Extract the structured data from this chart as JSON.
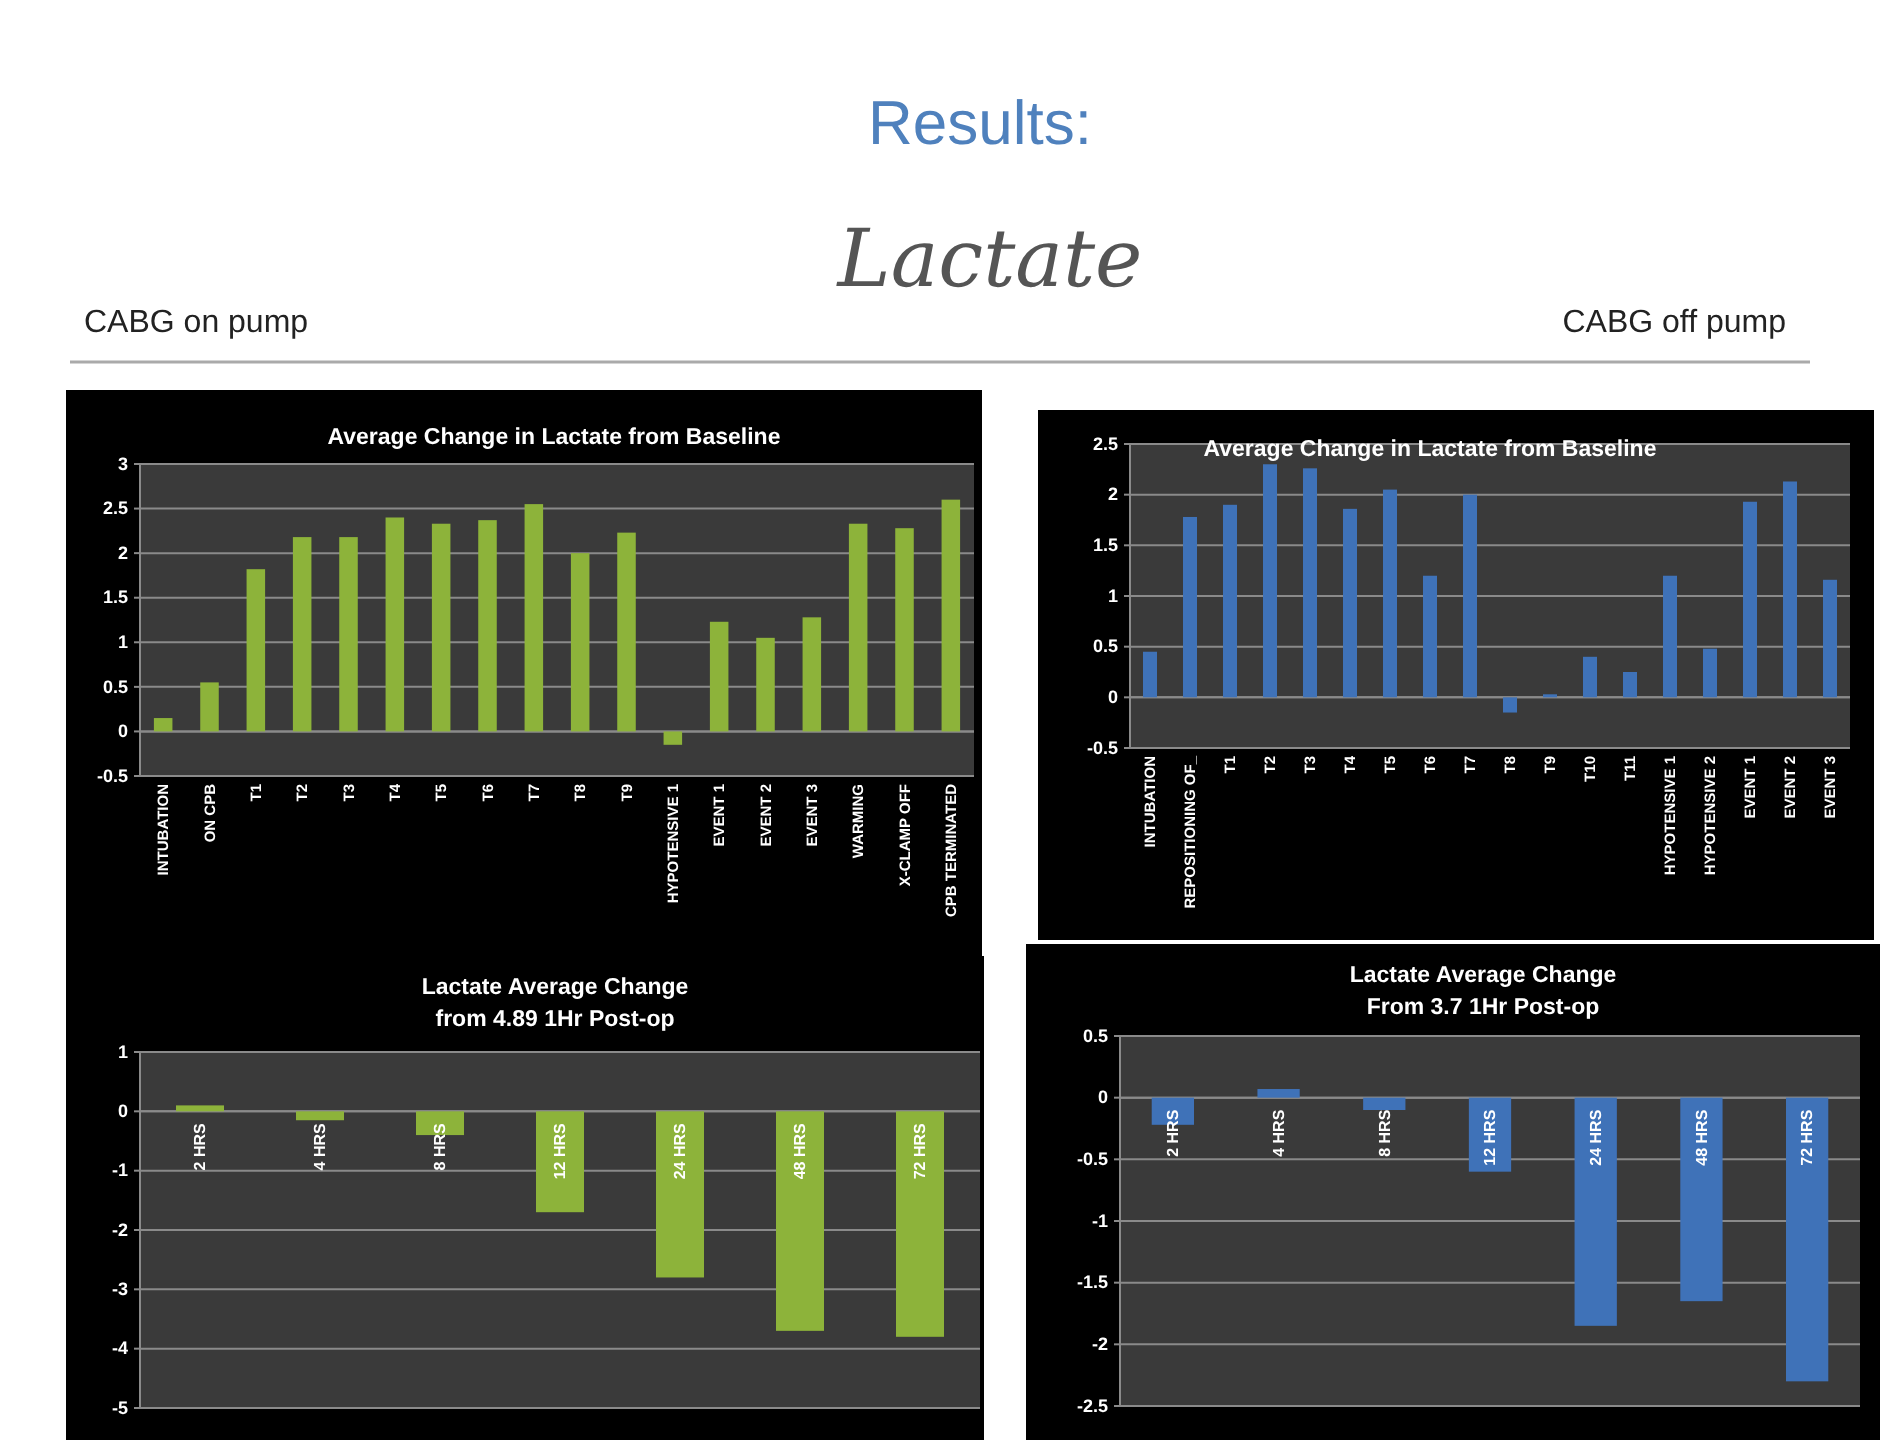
{
  "chart_data": [
    {
      "type": "other",
      "title": "Results:",
      "subtitle": "Lactate",
      "annotations": [
        "CABG on pump",
        "CABG off pump"
      ]
    },
    {
      "type": "bar",
      "title": "Average Change in Lactate from Baseline",
      "categories": [
        "INTUBATION",
        "ON CPB",
        "T1",
        "T2",
        "T3",
        "T4",
        "T5",
        "T6",
        "T7",
        "T8",
        "T9",
        "HYPOTENSIVE 1",
        "EVENT 1",
        "EVENT 2",
        "EVENT 3",
        "WARMING",
        "X-CLAMP OFF",
        "CPB TERMINATED"
      ],
      "values": [
        0.15,
        0.55,
        1.82,
        2.18,
        2.18,
        2.4,
        2.33,
        2.37,
        2.55,
        2.0,
        2.23,
        -0.15,
        1.23,
        1.05,
        1.28,
        2.33,
        2.28,
        2.6
      ],
      "color": "#8db33a",
      "ylim": [
        -0.5,
        3
      ],
      "yticks": [
        -0.5,
        0,
        0.5,
        1,
        1.5,
        2,
        2.5,
        3
      ],
      "grid": "y"
    },
    {
      "type": "bar",
      "title": "Average Change in Lactate from Baseline",
      "categories": [
        "INTUBATION",
        "REPOSITIONING OF_",
        "T1",
        "T2",
        "T3",
        "T4",
        "T5",
        "T6",
        "T7",
        "T8",
        "T9",
        "T10",
        "T11",
        "HYPOTENSIVE 1",
        "HYPOTENSIVE 2",
        "EVENT 1",
        "EVENT 2",
        "EVENT 3"
      ],
      "values": [
        0.45,
        1.78,
        1.9,
        2.3,
        2.26,
        1.86,
        2.05,
        1.2,
        2.0,
        -0.15,
        0.03,
        0.4,
        0.25,
        1.2,
        0.48,
        1.93,
        2.13,
        1.16
      ],
      "color": "#3f72b8",
      "ylim": [
        -0.5,
        2.5
      ],
      "yticks": [
        -0.5,
        0,
        0.5,
        1,
        1.5,
        2,
        2.5
      ],
      "grid": "y"
    },
    {
      "type": "bar",
      "title": "Lactate Average Change",
      "subtitle": "from 4.89 1Hr Post-op",
      "categories": [
        "2 HRS",
        "4 HRS",
        "8 HRS",
        "12 HRS",
        "24 HRS",
        "48 HRS",
        "72 HRS"
      ],
      "values": [
        0.1,
        -0.15,
        -0.4,
        -1.7,
        -2.8,
        -3.7,
        -3.8
      ],
      "color": "#8db33a",
      "ylim": [
        -5,
        1
      ],
      "yticks": [
        -5,
        -4,
        -3,
        -2,
        -1,
        0,
        1
      ],
      "grid": "y"
    },
    {
      "type": "bar",
      "title": "Lactate Average Change",
      "subtitle": "From 3.7 1Hr Post-op",
      "categories": [
        "2 HRS",
        "4 HRS",
        "8 HRS",
        "12 HRS",
        "24 HRS",
        "48 HRS",
        "72 HRS"
      ],
      "values": [
        -0.22,
        0.07,
        -0.1,
        -0.6,
        -1.85,
        -1.65,
        -2.3
      ],
      "color": "#3f72b8",
      "ylim": [
        -2.5,
        0.5
      ],
      "yticks": [
        -2.5,
        -2,
        -1.5,
        -1,
        -0.5,
        0,
        0.5
      ],
      "grid": "y"
    }
  ]
}
